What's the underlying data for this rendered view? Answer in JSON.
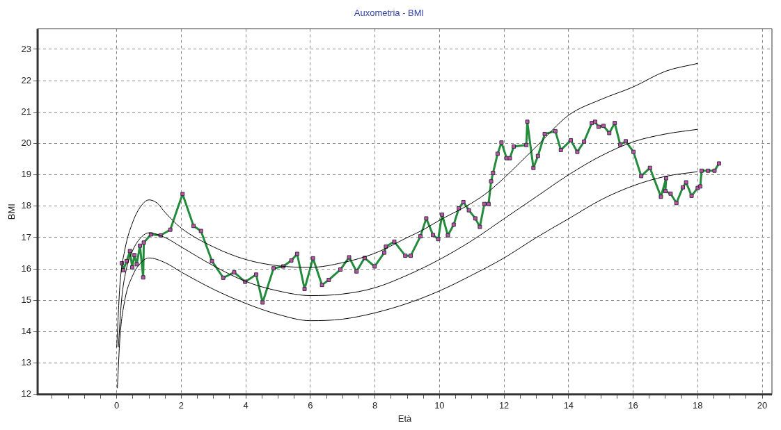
{
  "chart_data": {
    "type": "line",
    "title": "Auxometria - BMI",
    "xlabel": "Età",
    "ylabel": "BMI",
    "xlim": [
      -2.45,
      20.3
    ],
    "ylim": [
      12,
      23.65
    ],
    "xticks": [
      {
        "value": -2,
        "label": null
      },
      {
        "value": -1.5,
        "label": null
      },
      {
        "value": -1,
        "label": null
      },
      {
        "value": -0.5,
        "label": null
      },
      0,
      {
        "value": 0.5,
        "label": null
      },
      {
        "value": 1,
        "label": null
      },
      {
        "value": 1.5,
        "label": null
      },
      2,
      {
        "value": 2.5,
        "label": null
      },
      {
        "value": 3,
        "label": null
      },
      {
        "value": 3.5,
        "label": null
      },
      4,
      {
        "value": 4.5,
        "label": null
      },
      {
        "value": 5,
        "label": null
      },
      {
        "value": 5.5,
        "label": null
      },
      6,
      {
        "value": 6.5,
        "label": null
      },
      {
        "value": 7,
        "label": null
      },
      {
        "value": 7.5,
        "label": null
      },
      8,
      {
        "value": 8.5,
        "label": null
      },
      {
        "value": 9,
        "label": null
      },
      {
        "value": 9.5,
        "label": null
      },
      10,
      {
        "value": 10.5,
        "label": null
      },
      {
        "value": 11,
        "label": null
      },
      {
        "value": 11.5,
        "label": null
      },
      12,
      {
        "value": 12.5,
        "label": null
      },
      {
        "value": 13,
        "label": null
      },
      {
        "value": 13.5,
        "label": null
      },
      14,
      {
        "value": 14.5,
        "label": null
      },
      {
        "value": 15,
        "label": null
      },
      {
        "value": 15.5,
        "label": null
      },
      16,
      {
        "value": 16.5,
        "label": null
      },
      {
        "value": 17,
        "label": null
      },
      {
        "value": 17.5,
        "label": null
      },
      18,
      {
        "value": 18.5,
        "label": null
      },
      {
        "value": 19,
        "label": null
      },
      {
        "value": 19.5,
        "label": null
      },
      20
    ],
    "yticks": [
      12,
      13,
      14,
      15,
      16,
      17,
      18,
      19,
      20,
      21,
      22,
      23
    ],
    "grid": true,
    "legend": false,
    "series": [
      {
        "color": "#000000",
        "marker": "none",
        "x": [
          0.0,
          0.1,
          0.25,
          0.5,
          0.75,
          1,
          1.25,
          1.5,
          2,
          3,
          4,
          5,
          6,
          7,
          8,
          9,
          9.5,
          10,
          11,
          11.5,
          12,
          13,
          14,
          15,
          16,
          17,
          18
        ],
        "values": [
          13.5,
          15.5,
          16.6,
          17.5,
          18.0,
          18.2,
          18.1,
          17.8,
          17.3,
          16.7,
          16.3,
          16.1,
          16.05,
          16.2,
          16.5,
          17.0,
          17.25,
          17.55,
          18.1,
          18.45,
          18.9,
          19.9,
          20.9,
          21.4,
          21.8,
          22.3,
          22.55
        ]
      },
      {
        "color": "#000000",
        "marker": "none",
        "x": [
          0.05,
          0.15,
          0.3,
          0.5,
          0.75,
          1,
          1.5,
          2,
          3,
          4,
          5,
          6,
          7,
          8,
          9,
          10,
          11,
          12,
          13,
          14,
          15,
          16,
          17,
          18
        ],
        "values": [
          13.5,
          15.0,
          16.0,
          16.6,
          17.0,
          17.15,
          17.0,
          16.7,
          16.1,
          15.6,
          15.3,
          15.15,
          15.2,
          15.4,
          15.8,
          16.3,
          16.9,
          17.6,
          18.3,
          19.0,
          19.6,
          20.05,
          20.3,
          20.45
        ]
      },
      {
        "color": "#000000",
        "marker": "none",
        "x": [
          0.02,
          0.1,
          0.25,
          0.5,
          0.75,
          1,
          1.5,
          2,
          3,
          4,
          5,
          6,
          7,
          8,
          9,
          10,
          11,
          12,
          13,
          14,
          15,
          16,
          17,
          18
        ],
        "values": [
          12.2,
          13.8,
          15.0,
          15.8,
          16.2,
          16.35,
          16.2,
          15.9,
          15.35,
          14.9,
          14.55,
          14.35,
          14.4,
          14.6,
          14.9,
          15.3,
          15.8,
          16.35,
          17.0,
          17.6,
          18.2,
          18.65,
          18.95,
          19.1
        ]
      },
      {
        "color": "#228b3c",
        "marker": "square",
        "colors": [
          "#c050b0",
          "#c050b0",
          "#c050b0",
          "#c050b0",
          "#c050b0",
          "#c050b0",
          "#c050b0",
          "#c050b0",
          "#c050b0",
          "#c050b0",
          "#c050b0",
          "#c050b0",
          "#c050b0",
          "#c050b0",
          "#c050b0",
          "#c050b0",
          "#c050b0",
          "#c050b0",
          "#c050b0",
          "#c050b0",
          "#c050b0",
          "#c050b0",
          "#c050b0",
          "#c050b0",
          "#c050b0",
          "#c050b0",
          "#c050b0",
          "#c050b0",
          "#c050b0",
          "#c050b0",
          "#c050b0",
          "#c050b0",
          "#c050b0",
          "#c050b0",
          "#c050b0",
          "#c050b0",
          "#c050b0",
          "#c050b0",
          "#c050b0",
          "#c050b0",
          "#c050b0",
          "#c050b0",
          "#c050b0",
          "#c050b0",
          "#c050b0",
          "#c050b0",
          "#c050b0",
          "#c050b0",
          "#c050b0",
          "#c050b0",
          "#c050b0",
          "#c050b0",
          "#c050b0",
          "#c050b0",
          "#c050b0",
          "#c050b0",
          "#c050b0",
          "#c050b0",
          "#c050b0",
          "#c050b0",
          "#c050b0",
          "#c050b0",
          "#c050b0",
          "#c050b0",
          "#c050b0",
          "#c050b0",
          "#c050b0",
          "#c050b0",
          "#c050b0",
          "#c050b0",
          "#c050b0",
          "#c050b0",
          "#c050b0",
          "#c050b0",
          "#c050b0",
          "#c050b0",
          "#c050b0",
          "#c050b0",
          "#c050b0",
          "#c050b0",
          "#c050b0",
          "#c050b0",
          "#c050b0",
          "#c050b0",
          "#c050b0",
          "#c050b0",
          "#c050b0",
          "#c050b0",
          "#c050b0",
          "#c050b0",
          "#c050b0",
          "#c050b0",
          "#c050b0",
          "#c050b0",
          "#c050b0",
          "#c050b0"
        ],
        "x": [
          0.16,
          0.2,
          0.31,
          0.41,
          0.48,
          0.55,
          0.62,
          0.72,
          0.82,
          0.84,
          1.06,
          1.36,
          1.66,
          2.04,
          2.38,
          2.61,
          2.95,
          3.3,
          3.64,
          3.98,
          4.32,
          4.52,
          4.86,
          5.16,
          5.41,
          5.59,
          5.82,
          6.08,
          6.36,
          6.57,
          6.93,
          7.2,
          7.43,
          7.68,
          7.99,
          8.29,
          8.34,
          8.6,
          8.94,
          9.11,
          9.41,
          9.59,
          9.8,
          9.96,
          10.08,
          10.26,
          10.44,
          10.6,
          10.74,
          10.91,
          11.11,
          11.25,
          11.39,
          11.52,
          11.6,
          11.66,
          11.8,
          11.92,
          12.08,
          12.18,
          12.3,
          12.69,
          12.72,
          12.91,
          13.05,
          13.26,
          13.59,
          13.76,
          14.07,
          14.27,
          14.48,
          14.72,
          14.82,
          14.93,
          15.08,
          15.26,
          15.43,
          15.6,
          15.77,
          16.01,
          16.25,
          16.52,
          16.86,
          17.02,
          17.0,
          17.16,
          17.34,
          17.54,
          17.64,
          17.81,
          18.0,
          18.08,
          18.12,
          18.32,
          18.52,
          18.66
        ],
        "values": [
          16.18,
          15.96,
          16.25,
          16.57,
          16.05,
          16.44,
          16.15,
          16.74,
          15.73,
          16.84,
          17.1,
          17.07,
          17.25,
          18.39,
          17.37,
          17.21,
          16.25,
          15.72,
          15.89,
          15.59,
          15.82,
          14.93,
          16.02,
          16.08,
          16.27,
          16.48,
          15.36,
          16.34,
          15.49,
          15.65,
          15.98,
          16.37,
          15.92,
          16.35,
          16.08,
          16.52,
          16.71,
          16.87,
          16.42,
          16.42,
          17.04,
          17.61,
          17.08,
          16.95,
          17.73,
          17.07,
          17.41,
          17.93,
          18.13,
          17.87,
          17.61,
          17.34,
          18.07,
          18.07,
          18.79,
          19.06,
          19.67,
          20.03,
          19.53,
          19.53,
          19.9,
          19.95,
          20.69,
          19.22,
          19.6,
          20.3,
          20.39,
          19.79,
          20.1,
          19.73,
          20.06,
          20.65,
          20.69,
          20.53,
          20.56,
          20.33,
          20.65,
          19.96,
          20.07,
          19.73,
          18.96,
          19.22,
          18.3,
          18.89,
          18.48,
          18.4,
          18.1,
          18.6,
          18.76,
          18.33,
          18.58,
          18.63,
          19.13,
          19.13,
          19.13,
          19.36
        ]
      }
    ]
  }
}
